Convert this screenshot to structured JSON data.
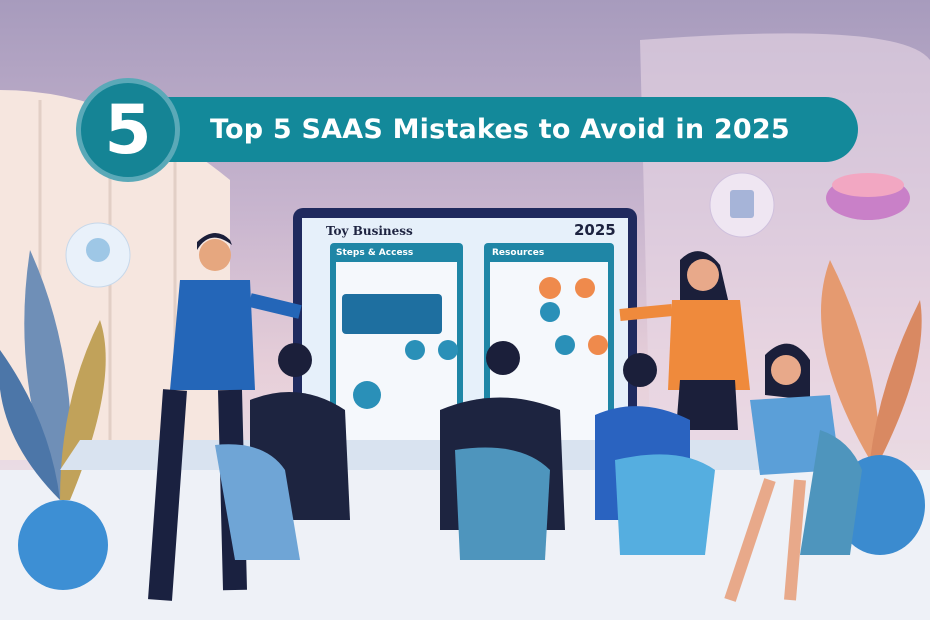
{
  "banner": {
    "number": "5",
    "title": "Top 5 SAAS Mistakes to Avoid in 2025",
    "color": "#13899a"
  },
  "screen": {
    "title": "Toy Business",
    "year": "2025",
    "left_panel_title": "Steps & Access",
    "right_panel_title": "Resources",
    "frame_color": "#1f2a5e",
    "panel_color": "#1f86a6"
  }
}
